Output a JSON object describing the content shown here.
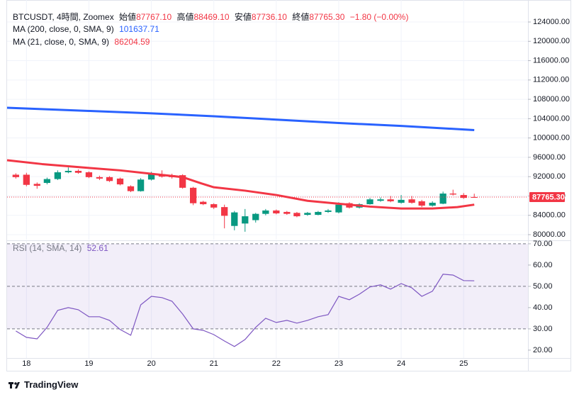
{
  "chart_data": {
    "type": "candlestick",
    "header": {
      "symbol": "BTCUSDT, 4時間, Zoomex",
      "open_label": "始値",
      "high_label": "高値",
      "low_label": "安値",
      "close_label": "終値",
      "change": "−1.80 (−0.00%)"
    },
    "ohlc_labels": [
      "87767.10",
      "88469.10",
      "87736.10",
      "87765.30"
    ],
    "up_color": "#089981",
    "down_color": "#f23645",
    "xlim": [
      17.69,
      26.03
    ],
    "xticks": [
      18,
      19,
      20,
      21,
      22,
      23,
      24,
      25
    ],
    "x": [
      17.83,
      18,
      18.17,
      18.33,
      18.5,
      18.67,
      18.83,
      19,
      19.17,
      19.33,
      19.5,
      19.67,
      19.83,
      20,
      20.17,
      20.33,
      20.5,
      20.67,
      20.83,
      21,
      21.17,
      21.33,
      21.5,
      21.67,
      21.83,
      22,
      22.17,
      22.33,
      22.5,
      22.67,
      22.83,
      23,
      23.17,
      23.33,
      23.5,
      23.67,
      23.83,
      24,
      24.17,
      24.33,
      24.5,
      24.67,
      24.83,
      25,
      25.17
    ],
    "candles": [
      [
        92400,
        92700,
        91600,
        91900
      ],
      [
        92400,
        92800,
        90000,
        90300
      ],
      [
        90500,
        90800,
        89500,
        90100
      ],
      [
        90700,
        91800,
        90400,
        91500
      ],
      [
        91500,
        93300,
        91300,
        92900
      ],
      [
        92900,
        93900,
        92700,
        93200
      ],
      [
        93200,
        93500,
        92600,
        92800
      ],
      [
        92900,
        93100,
        91700,
        91900
      ],
      [
        91900,
        92200,
        91300,
        91600
      ],
      [
        91900,
        92100,
        90900,
        91100
      ],
      [
        91600,
        91800,
        90200,
        90400
      ],
      [
        90000,
        90200,
        88800,
        89000
      ],
      [
        89000,
        91700,
        88900,
        91400
      ],
      [
        91400,
        93000,
        91200,
        92600
      ],
      [
        92500,
        93300,
        91800,
        92000
      ],
      [
        92300,
        92600,
        91600,
        91900
      ],
      [
        92300,
        92500,
        89500,
        89700
      ],
      [
        89700,
        89900,
        86100,
        86500
      ],
      [
        86800,
        87000,
        86100,
        86300
      ],
      [
        86300,
        86500,
        85300,
        85600
      ],
      [
        85700,
        86200,
        81300,
        83900
      ],
      [
        81800,
        84900,
        80900,
        84600
      ],
      [
        82300,
        85300,
        80600,
        83800
      ],
      [
        83000,
        84500,
        82500,
        84300
      ],
      [
        84300,
        85300,
        84000,
        85000
      ],
      [
        85000,
        85200,
        84200,
        84400
      ],
      [
        84700,
        84900,
        84100,
        84300
      ],
      [
        84500,
        84700,
        83600,
        83800
      ],
      [
        84100,
        84700,
        83900,
        84500
      ],
      [
        84100,
        84900,
        84000,
        84700
      ],
      [
        84700,
        85300,
        84500,
        85000
      ],
      [
        84600,
        86700,
        84400,
        86200
      ],
      [
        86500,
        86700,
        85400,
        85600
      ],
      [
        85600,
        86500,
        85400,
        86300
      ],
      [
        86300,
        87600,
        86200,
        87300
      ],
      [
        87000,
        87700,
        86800,
        87300
      ],
      [
        87300,
        88000,
        86700,
        86900
      ],
      [
        86600,
        88200,
        86400,
        87200
      ],
      [
        87300,
        88000,
        86400,
        86600
      ],
      [
        86900,
        87200,
        85700,
        86000
      ],
      [
        86000,
        86900,
        85800,
        86600
      ],
      [
        86400,
        88900,
        86300,
        88500
      ],
      [
        88500,
        89300,
        88100,
        88300
      ],
      [
        88200,
        88600,
        87400,
        87600
      ],
      [
        87767.1,
        88469.1,
        87736.1,
        87765.3
      ]
    ],
    "ylim": [
      78970,
      128550
    ],
    "yticks": [
      {
        "value": 80000,
        "label": "80000.00"
      },
      {
        "value": 84000,
        "label": "84000.00"
      },
      {
        "value": 88000,
        "label": "88000.00"
      },
      {
        "value": 92000,
        "label": "92000.00"
      },
      {
        "value": 96000,
        "label": "96000.00"
      },
      {
        "value": 100000,
        "label": "100000.00"
      },
      {
        "value": 104000,
        "label": "104000.00"
      },
      {
        "value": 108000,
        "label": "108000.00"
      },
      {
        "value": 112000,
        "label": "112000.00"
      },
      {
        "value": 116000,
        "label": "116000.00"
      },
      {
        "value": 120000,
        "label": "120000.00"
      },
      {
        "value": 124000,
        "label": "124000.00"
      }
    ],
    "grid": true,
    "series": [
      {
        "name": "MA (200, close, 0, SMA, 9)",
        "color": "#2962ff",
        "x": [
          17.69,
          19,
          20,
          21,
          22,
          23,
          24,
          25.17
        ],
        "values": [
          106250,
          105600,
          105100,
          104500,
          103800,
          103100,
          102500,
          101637.71
        ]
      },
      {
        "name": "MA (21, close, 0, SMA, 9)",
        "color": "#f23645",
        "x": [
          17.69,
          18.25,
          19,
          19.5,
          20,
          20.5,
          20.8,
          21,
          21.5,
          22,
          22.5,
          23,
          23.5,
          24,
          24.5,
          24.9,
          25.17
        ],
        "values": [
          95400,
          94600,
          93800,
          93300,
          92600,
          91900,
          90600,
          89800,
          89100,
          88200,
          87000,
          86400,
          85800,
          85400,
          85400,
          85700,
          86204.59
        ]
      }
    ],
    "rsi": {
      "name": "RSI (14, SMA, 14)",
      "color": "#7e57c2",
      "values": [
        29,
        26,
        25.3,
        30.7,
        38.7,
        40,
        39,
        35.7,
        35.7,
        34,
        29.7,
        27,
        41.3,
        45.3,
        44.7,
        43,
        37,
        30,
        29.3,
        27.3,
        24.3,
        21.7,
        25,
        30.7,
        35,
        33,
        34,
        32.7,
        34,
        35.7,
        36.7,
        45.3,
        43.7,
        46.3,
        49.7,
        50.7,
        48.7,
        51.3,
        49.3,
        45.3,
        47.7,
        55.7,
        55.3,
        52.7,
        52.61
      ],
      "ylim": [
        16.3,
        71.3
      ],
      "yticks": [
        {
          "value": 20,
          "label": "20.00"
        },
        {
          "value": 30,
          "label": "30.00"
        },
        {
          "value": 40,
          "label": "40.00"
        },
        {
          "value": 50,
          "label": "50.00"
        },
        {
          "value": 60,
          "label": "60.00"
        },
        {
          "value": 70,
          "label": "70.00"
        }
      ],
      "levels": [
        30,
        50,
        70
      ],
      "band": [
        30,
        70
      ]
    },
    "footer": "TradingView"
  }
}
